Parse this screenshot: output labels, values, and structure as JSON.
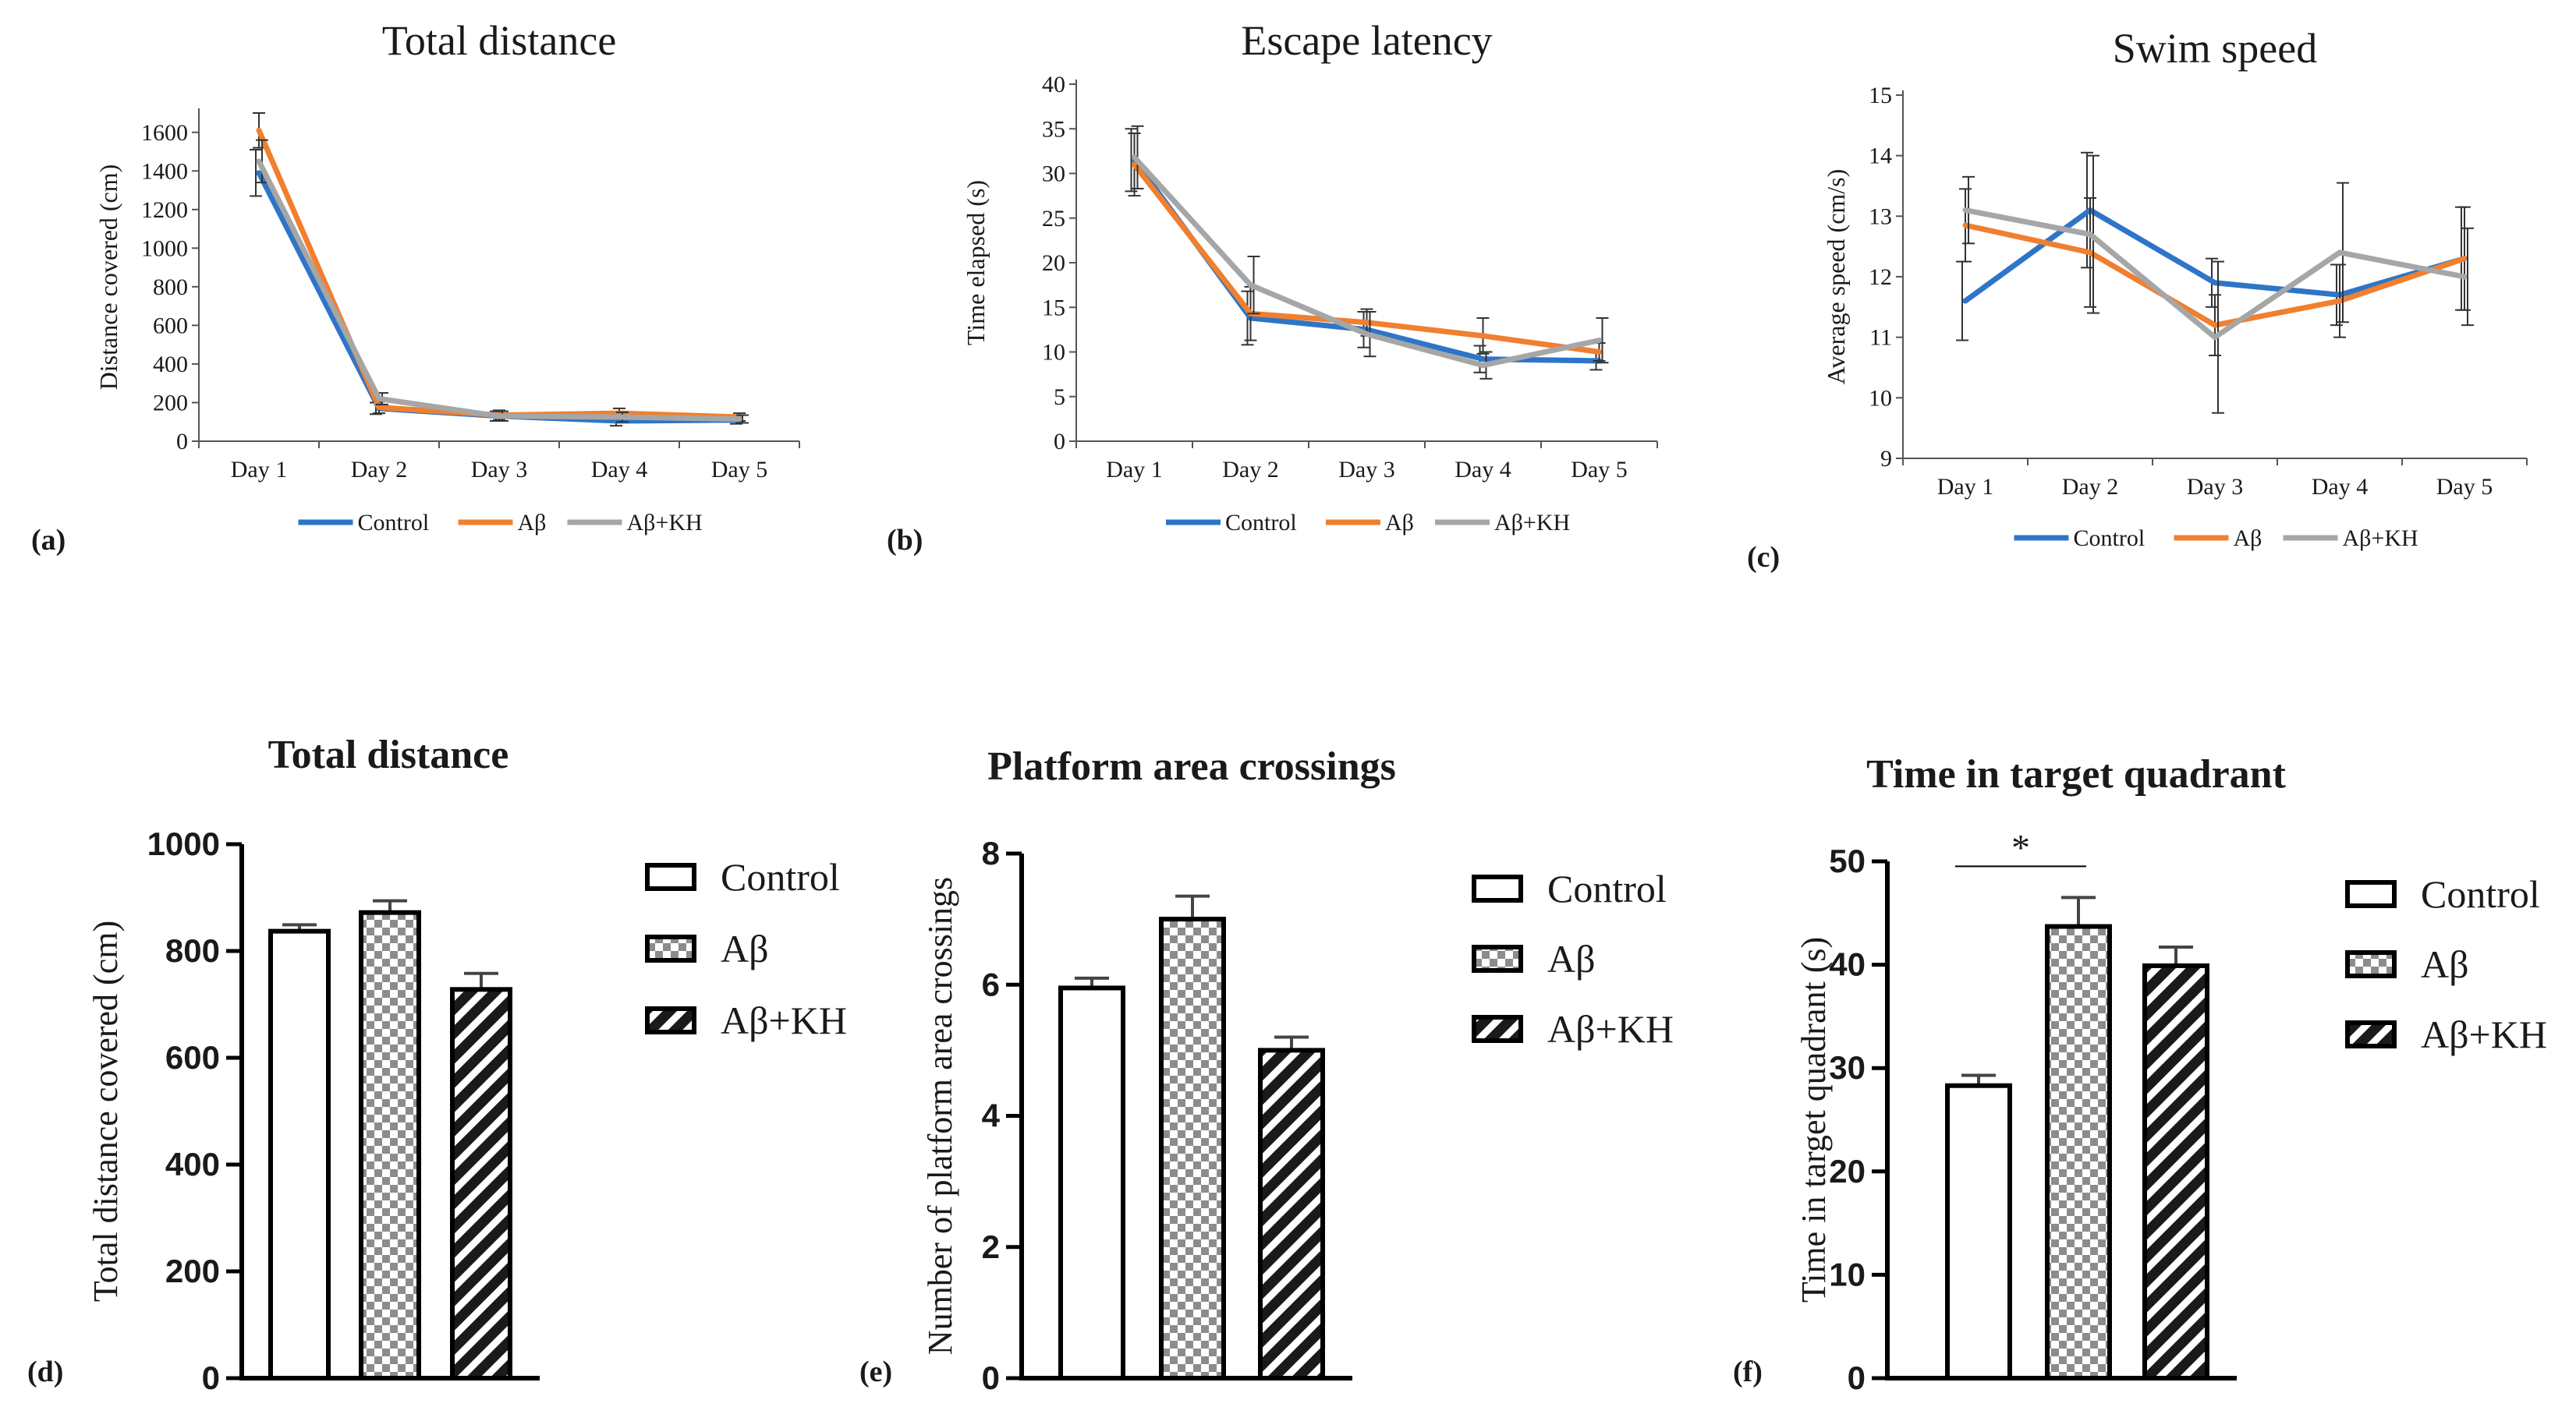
{
  "chart_data": [
    {
      "panel": "(a)",
      "type": "line",
      "title": "Total distance",
      "ylabel": "Distance covered (cm)",
      "xlabel": "",
      "categories": [
        "Day 1",
        "Day 2",
        "Day 3",
        "Day 4",
        "Day 5"
      ],
      "ylim": [
        0,
        1700
      ],
      "yticks": [
        0,
        200,
        400,
        600,
        800,
        1000,
        1200,
        1400,
        1600
      ],
      "grid": false,
      "legend_position": "bottom",
      "series": [
        {
          "name": "Control",
          "color": "#2e75c8",
          "values": [
            1390,
            170,
            130,
            105,
            110
          ],
          "errors": [
            120,
            30,
            25,
            25,
            20
          ]
        },
        {
          "name": "Aβ",
          "color": "#f07f2f",
          "values": [
            1610,
            175,
            135,
            145,
            125
          ],
          "errors": [
            90,
            30,
            25,
            25,
            20
          ]
        },
        {
          "name": "Aβ+KH",
          "color": "#a6a6a6",
          "values": [
            1450,
            220,
            130,
            125,
            115
          ],
          "errors": [
            110,
            30,
            25,
            25,
            20
          ]
        }
      ]
    },
    {
      "panel": "(b)",
      "type": "line",
      "title": "Escape latency",
      "ylabel": "Time elapsed (s)",
      "xlabel": "",
      "categories": [
        "Day 1",
        "Day 2",
        "Day 3",
        "Day 4",
        "Day 5"
      ],
      "ylim": [
        0,
        40
      ],
      "yticks": [
        0,
        5,
        10,
        15,
        20,
        25,
        30,
        35,
        40
      ],
      "grid": false,
      "legend_position": "bottom",
      "series": [
        {
          "name": "Control",
          "color": "#2e75c8",
          "values": [
            31.5,
            13.8,
            12.5,
            9.2,
            9.0
          ],
          "errors": [
            3.5,
            3.0,
            2.0,
            1.5,
            1.0
          ]
        },
        {
          "name": "Aβ",
          "color": "#f07f2f",
          "values": [
            31.0,
            14.3,
            13.3,
            11.8,
            10.0
          ],
          "errors": [
            3.5,
            3.0,
            1.5,
            2.0,
            1.0
          ]
        },
        {
          "name": "Aβ+KH",
          "color": "#a6a6a6",
          "values": [
            31.8,
            17.5,
            12.0,
            8.5,
            11.3
          ],
          "errors": [
            3.5,
            3.2,
            2.5,
            1.5,
            2.5
          ]
        }
      ]
    },
    {
      "panel": "(c)",
      "type": "line",
      "title": "Swim speed",
      "ylabel": "Average speed (cm/s)",
      "xlabel": "",
      "categories": [
        "Day 1",
        "Day 2",
        "Day 3",
        "Day 4",
        "Day 5"
      ],
      "ylim": [
        9,
        15
      ],
      "yticks": [
        9,
        10,
        11,
        12,
        13,
        14,
        15
      ],
      "grid": false,
      "legend_position": "bottom",
      "series": [
        {
          "name": "Control",
          "color": "#2e75c8",
          "values": [
            11.6,
            13.1,
            11.9,
            11.7,
            12.3
          ],
          "errors": [
            0.65,
            0.95,
            0.4,
            0.5,
            0.85
          ]
        },
        {
          "name": "Aβ",
          "color": "#f07f2f",
          "values": [
            12.85,
            12.4,
            11.2,
            11.6,
            12.3
          ],
          "errors": [
            0.6,
            0.9,
            0.5,
            0.6,
            0.85
          ]
        },
        {
          "name": "Aβ+KH",
          "color": "#a6a6a6",
          "values": [
            13.1,
            12.7,
            11.0,
            12.4,
            12.0
          ],
          "errors": [
            0.55,
            1.3,
            1.25,
            1.15,
            0.8
          ]
        }
      ]
    },
    {
      "panel": "(d)",
      "type": "bar",
      "title": "Total distance",
      "ylabel": "Total distance covered (cm)",
      "xlabel": "",
      "categories": [
        "Control",
        "Aβ",
        "Aβ+KH"
      ],
      "values": [
        837,
        872,
        728
      ],
      "errors": [
        12,
        22,
        30
      ],
      "patterns": [
        "none",
        "checker",
        "stripe"
      ],
      "ylim": [
        0,
        1000
      ],
      "yticks": [
        0,
        200,
        400,
        600,
        800,
        1000
      ],
      "legend_position": "right",
      "significance": []
    },
    {
      "panel": "(e)",
      "type": "bar",
      "title": "Platform area crossings",
      "ylabel": "Number of platform area crossings",
      "xlabel": "",
      "categories": [
        "Control",
        "Aβ",
        "Aβ+KH"
      ],
      "values": [
        5.95,
        7.0,
        5.0
      ],
      "errors": [
        0.15,
        0.35,
        0.2
      ],
      "patterns": [
        "none",
        "checker",
        "stripe"
      ],
      "ylim": [
        0,
        8
      ],
      "yticks": [
        0,
        2,
        4,
        6,
        8
      ],
      "legend_position": "right",
      "significance": []
    },
    {
      "panel": "(f)",
      "type": "bar",
      "title": "Time in target quadrant",
      "ylabel": "Time in target quadrant (s)",
      "xlabel": "",
      "categories": [
        "Control",
        "Aβ",
        "Aβ+KH"
      ],
      "values": [
        28.3,
        43.7,
        39.9
      ],
      "errors": [
        1.0,
        2.8,
        1.8
      ],
      "patterns": [
        "none",
        "checker",
        "stripe"
      ],
      "ylim": [
        0,
        50
      ],
      "yticks": [
        0,
        10,
        20,
        30,
        40,
        50
      ],
      "legend_position": "right",
      "significance": [
        {
          "from": 0,
          "to": 1,
          "label": "*"
        }
      ]
    }
  ]
}
